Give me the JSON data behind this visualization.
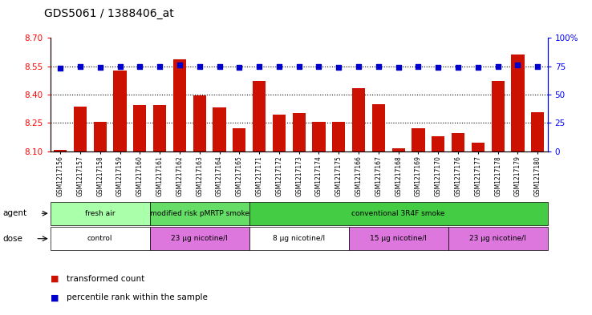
{
  "title": "GDS5061 / 1388406_at",
  "samples": [
    "GSM1217156",
    "GSM1217157",
    "GSM1217158",
    "GSM1217159",
    "GSM1217160",
    "GSM1217161",
    "GSM1217162",
    "GSM1217163",
    "GSM1217164",
    "GSM1217165",
    "GSM1217171",
    "GSM1217172",
    "GSM1217173",
    "GSM1217174",
    "GSM1217175",
    "GSM1217166",
    "GSM1217167",
    "GSM1217168",
    "GSM1217169",
    "GSM1217170",
    "GSM1217176",
    "GSM1217177",
    "GSM1217178",
    "GSM1217179",
    "GSM1217180"
  ],
  "bar_values": [
    8.105,
    8.335,
    8.255,
    8.525,
    8.345,
    8.345,
    8.585,
    8.395,
    8.33,
    8.22,
    8.47,
    8.295,
    8.3,
    8.255,
    8.255,
    8.435,
    8.35,
    8.115,
    8.22,
    8.18,
    8.195,
    8.145,
    8.47,
    8.61,
    8.305
  ],
  "percentile_values": [
    73,
    75,
    74,
    75,
    75,
    75,
    76,
    75,
    75,
    74,
    75,
    75,
    75,
    75,
    74,
    75,
    75,
    74,
    75,
    74,
    74,
    74,
    75,
    76,
    75
  ],
  "ylim_left": [
    8.1,
    8.7
  ],
  "ylim_right": [
    0,
    100
  ],
  "yticks_left": [
    8.1,
    8.25,
    8.4,
    8.55,
    8.7
  ],
  "yticks_right": [
    0,
    25,
    50,
    75,
    100
  ],
  "bar_color": "#cc1100",
  "dot_color": "#0000cc",
  "agent_segments": [
    {
      "text": "fresh air",
      "start": 0,
      "end": 5,
      "color": "#aaffaa"
    },
    {
      "text": "modified risk pMRTP smoke",
      "start": 5,
      "end": 10,
      "color": "#66dd66"
    },
    {
      "text": "conventional 3R4F smoke",
      "start": 10,
      "end": 25,
      "color": "#44cc44"
    }
  ],
  "dose_segments": [
    {
      "text": "control",
      "start": 0,
      "end": 5,
      "color": "#ffffff"
    },
    {
      "text": "23 µg nicotine/l",
      "start": 5,
      "end": 10,
      "color": "#dd77dd"
    },
    {
      "text": "8 µg nicotine/l",
      "start": 10,
      "end": 15,
      "color": "#ffffff"
    },
    {
      "text": "15 µg nicotine/l",
      "start": 15,
      "end": 20,
      "color": "#dd77dd"
    },
    {
      "text": "23 µg nicotine/l",
      "start": 20,
      "end": 25,
      "color": "#dd77dd"
    }
  ],
  "legend_items": [
    {
      "label": "transformed count",
      "color": "#cc1100"
    },
    {
      "label": "percentile rank within the sample",
      "color": "#0000cc"
    }
  ]
}
